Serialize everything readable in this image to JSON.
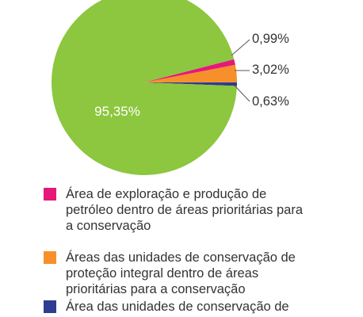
{
  "chart_data": {
    "type": "pie",
    "slices": [
      {
        "label": "95,35%",
        "value": 95.35,
        "color": "#8dc63f",
        "legend": ""
      },
      {
        "label": "0,99%",
        "value": 0.99,
        "color": "#e5197a",
        "legend": "Área de exploração e produção de petróleo dentro de áreas prioritárias para a conservação"
      },
      {
        "label": "3,02%",
        "value": 3.02,
        "color": "#f7902a",
        "legend": "Áreas das unidades de conservação de proteção integral dentro de áreas prioritárias para a conservação"
      },
      {
        "label": "0,63%",
        "value": 0.63,
        "color": "#2e3d8f",
        "legend": "Área das unidades de conservação de"
      }
    ],
    "legend_placement": "bottom"
  }
}
